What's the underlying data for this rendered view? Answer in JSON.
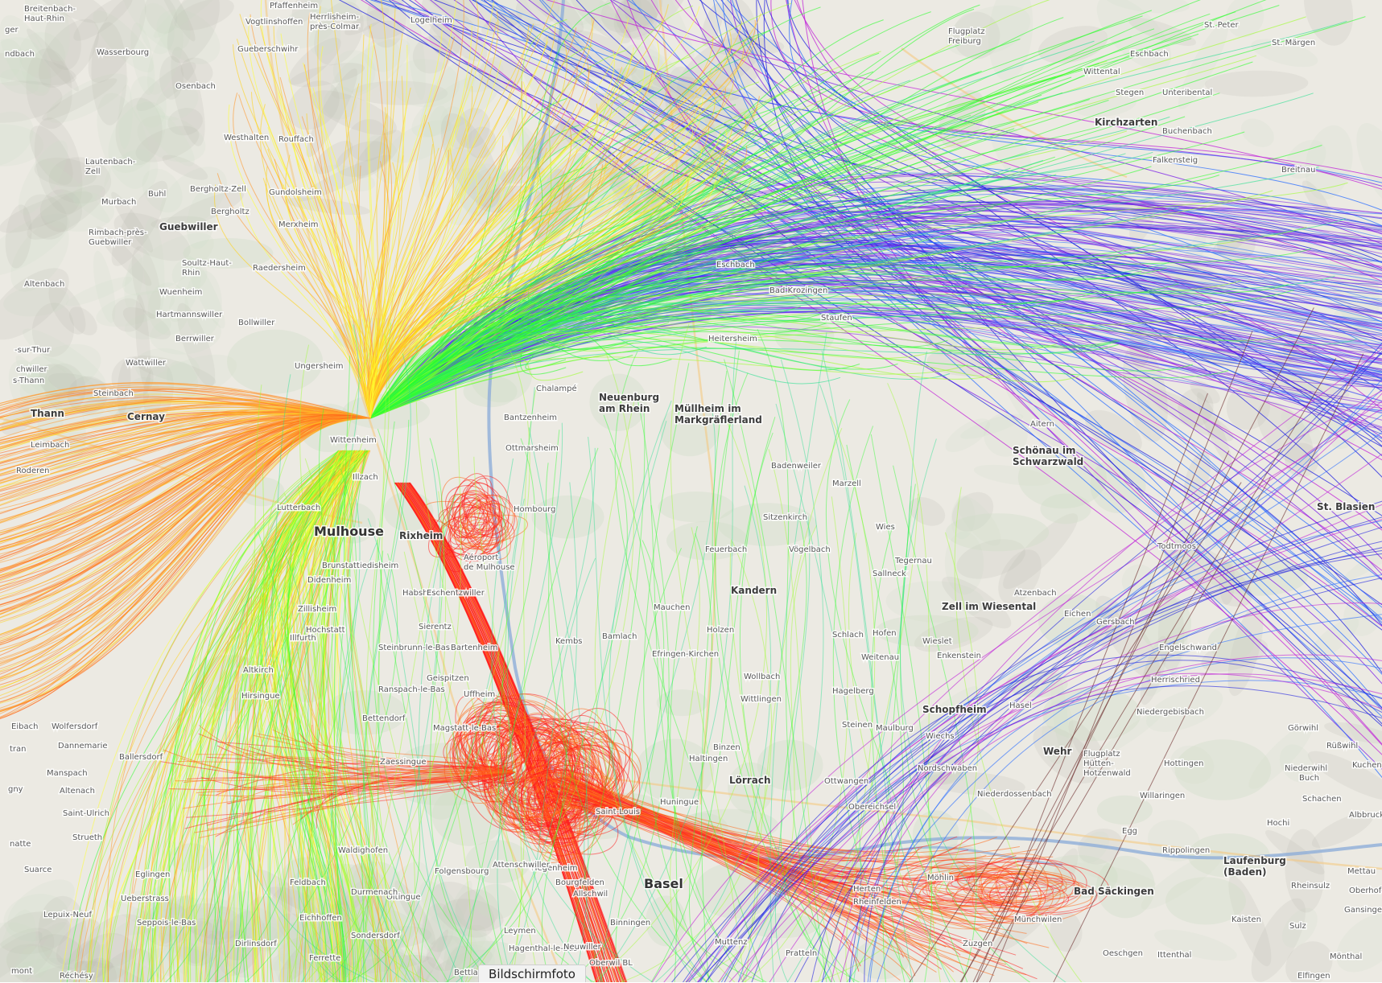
{
  "caption": "Bildschirmfoto",
  "colors": {
    "map_bg": "#eceae3",
    "forest": "#cfdcc6",
    "relief": "#b9b8ae",
    "river": "#8faed8",
    "road_major": "#f6c77a",
    "border": "#a07db8"
  },
  "trail_colors": [
    "#ff1e1e",
    "#ff6a1a",
    "#ff9a30",
    "#ffd21a",
    "#ffff33",
    "#9cff2a",
    "#2cff2c",
    "#28e090",
    "#2a6cff",
    "#2020e0",
    "#7a1ee8",
    "#c020d8",
    "#6b2a2a"
  ],
  "labels": [
    {
      "id": "breitenbach-haut-rhin",
      "text": "Breitenbach-\nHaut-Rhin",
      "kind": "village"
    },
    {
      "id": "pfaffenheim",
      "text": "Pfaffenheim",
      "kind": "village"
    },
    {
      "id": "herrlisheim-pres-colmar",
      "text": "Herrlisheim-\nprès-Colmar",
      "kind": "village"
    },
    {
      "id": "vogtlinshoffen",
      "text": "Vogtlinshoffen",
      "kind": "village"
    },
    {
      "id": "logelheim",
      "text": "Logelheim",
      "kind": "village"
    },
    {
      "id": "wasserbourg",
      "text": "Wasserbourg",
      "kind": "village"
    },
    {
      "id": "gueberschwihr",
      "text": "Gueberschwihr",
      "kind": "village"
    },
    {
      "id": "osenbach",
      "text": "Osenbach",
      "kind": "village"
    },
    {
      "id": "rouffach",
      "text": "Rouffach",
      "kind": "village"
    },
    {
      "id": "westhalten",
      "text": "Westhalten",
      "kind": "village"
    },
    {
      "id": "lautenbach-zell",
      "text": "Lautenbach-\nZell",
      "kind": "village"
    },
    {
      "id": "murbach",
      "text": "Murbach",
      "kind": "village"
    },
    {
      "id": "buhl",
      "text": "Buhl",
      "kind": "village"
    },
    {
      "id": "bergholtz-zell",
      "text": "Bergholtz-Zell",
      "kind": "village"
    },
    {
      "id": "bergholtz",
      "text": "Bergholtz",
      "kind": "village"
    },
    {
      "id": "guebwiller",
      "text": "Guebwiller",
      "kind": "town"
    },
    {
      "id": "rimbach-pres-guebwiller",
      "text": "Rimbach-près-\nGuebwiller",
      "kind": "village"
    },
    {
      "id": "soultz-haut-rhin",
      "text": "Soultz-Haut-\nRhin",
      "kind": "village"
    },
    {
      "id": "raedersheim",
      "text": "Raedersheim",
      "kind": "village"
    },
    {
      "id": "wuenheim",
      "text": "Wuenheim",
      "kind": "village"
    },
    {
      "id": "hartmannswiller",
      "text": "Hartmannswiller",
      "kind": "village"
    },
    {
      "id": "berrwiller",
      "text": "Berrwiller",
      "kind": "village"
    },
    {
      "id": "wattwiller",
      "text": "Wattwiller",
      "kind": "village"
    },
    {
      "id": "steinbach",
      "text": "Steinbach",
      "kind": "village"
    },
    {
      "id": "thann",
      "text": "Thann",
      "kind": "town"
    },
    {
      "id": "cernay",
      "text": "Cernay",
      "kind": "town"
    },
    {
      "id": "leimbach",
      "text": "Leimbach",
      "kind": "village"
    },
    {
      "id": "roderen",
      "text": "Roderen",
      "kind": "village"
    },
    {
      "id": "mulhouse",
      "text": "Mulhouse",
      "kind": "city"
    },
    {
      "id": "rixheim",
      "text": "Rixheim",
      "kind": "town"
    },
    {
      "id": "neuenburg-am-rhein",
      "text": "Neuenburg\nam Rhein",
      "kind": "town"
    },
    {
      "id": "mullheim-im-markgraflerland",
      "text": "Müllheim im\nMarkgräflerland",
      "kind": "town"
    },
    {
      "id": "flugplatz-freiburg",
      "text": "Flugplatz\nFreiburg",
      "kind": "village"
    },
    {
      "id": "st-peter",
      "text": "St. Peter",
      "kind": "village"
    },
    {
      "id": "st-margen",
      "text": "St. Märgen",
      "kind": "village"
    },
    {
      "id": "eschbach",
      "text": "Eschbach",
      "kind": "village"
    },
    {
      "id": "wittental",
      "text": "Wittental",
      "kind": "village"
    },
    {
      "id": "stegen",
      "text": "Stegen",
      "kind": "village"
    },
    {
      "id": "unteribental",
      "text": "Unteribental",
      "kind": "village"
    },
    {
      "id": "kirchzarten",
      "text": "Kirchzarten",
      "kind": "town"
    },
    {
      "id": "buchenbach",
      "text": "Buchenbach",
      "kind": "village"
    },
    {
      "id": "falkensteig",
      "text": "Falkensteig",
      "kind": "village"
    },
    {
      "id": "breitnau",
      "text": "Breitnau",
      "kind": "village"
    },
    {
      "id": "schonau-im-schwarzwald",
      "text": "Schönau im\nSchwarzwald",
      "kind": "town"
    },
    {
      "id": "aitern",
      "text": "Aitern",
      "kind": "village"
    },
    {
      "id": "st-blasien",
      "text": "St. Blasien",
      "kind": "town"
    },
    {
      "id": "todtmoos",
      "text": "Todtmoos",
      "kind": "village"
    },
    {
      "id": "kandern",
      "text": "Kandern",
      "kind": "town"
    },
    {
      "id": "feuerbach",
      "text": "Feuerbach",
      "kind": "village"
    },
    {
      "id": "sallneck",
      "text": "Sallneck",
      "kind": "village"
    },
    {
      "id": "zell-im-wiesental",
      "text": "Zell im Wiesental",
      "kind": "town"
    },
    {
      "id": "gersbach",
      "text": "Gersbach",
      "kind": "village"
    },
    {
      "id": "engelschwand",
      "text": "Engelschwand",
      "kind": "village"
    },
    {
      "id": "herrischried",
      "text": "Herrischried",
      "kind": "village"
    },
    {
      "id": "schopfheim",
      "text": "Schopfheim",
      "kind": "town"
    },
    {
      "id": "hasel",
      "text": "Hasel",
      "kind": "village"
    },
    {
      "id": "niedergebisbach",
      "text": "Niedergebisbach",
      "kind": "village"
    },
    {
      "id": "gorwihl",
      "text": "Görwihl",
      "kind": "village"
    },
    {
      "id": "wehr",
      "text": "Wehr",
      "kind": "town"
    },
    {
      "id": "flugplatz-hutten-hotzenwald",
      "text": "Flugplatz\nHütten-\nHotzenwald",
      "kind": "village"
    },
    {
      "id": "hottingen",
      "text": "Hottingen",
      "kind": "village"
    },
    {
      "id": "niederwihl",
      "text": "Niederwihl",
      "kind": "village"
    },
    {
      "id": "lorrach",
      "text": "Lörrach",
      "kind": "town"
    },
    {
      "id": "basel",
      "text": "Basel",
      "kind": "city"
    },
    {
      "id": "allschwil",
      "text": "Allschwil",
      "kind": "village"
    },
    {
      "id": "binningen",
      "text": "Binningen",
      "kind": "village"
    },
    {
      "id": "oberwil-bl",
      "text": "Oberwil BL",
      "kind": "village"
    },
    {
      "id": "muttenz",
      "text": "Muttenz",
      "kind": "village"
    },
    {
      "id": "pratteln",
      "text": "Pratteln",
      "kind": "village"
    },
    {
      "id": "mohlin",
      "text": "Möhlin",
      "kind": "village"
    },
    {
      "id": "bad-sackingen",
      "text": "Bad Säckingen",
      "kind": "town"
    },
    {
      "id": "laufenburg-baden",
      "text": "Laufenburg\n(Baden)",
      "kind": "town"
    },
    {
      "id": "rippolingen",
      "text": "Rippolingen",
      "kind": "village"
    },
    {
      "id": "willaringen",
      "text": "Willaringen",
      "kind": "village"
    },
    {
      "id": "wies",
      "text": "Wies",
      "kind": "village"
    },
    {
      "id": "weitenau",
      "text": "Weitenau",
      "kind": "village"
    },
    {
      "id": "enkenstein",
      "text": "Enkenstein",
      "kind": "village"
    },
    {
      "id": "hagelberg",
      "text": "Hagelberg",
      "kind": "village"
    },
    {
      "id": "wiechs",
      "text": "Wiechs",
      "kind": "village"
    },
    {
      "id": "nordschwaben",
      "text": "Nordschwaben",
      "kind": "village"
    },
    {
      "id": "niederdossenbach",
      "text": "Niederdossenbach",
      "kind": "village"
    },
    {
      "id": "obereichsel",
      "text": "Obereichsel",
      "kind": "village"
    },
    {
      "id": "ottwangen",
      "text": "Ottwangen",
      "kind": "village"
    },
    {
      "id": "herten",
      "text": "Herten",
      "kind": "village"
    },
    {
      "id": "rheinfelden",
      "text": "Rheinfelden",
      "kind": "village"
    },
    {
      "id": "zuzgen",
      "text": "Zuzgen",
      "kind": "village"
    },
    {
      "id": "munchwilen",
      "text": "Münchwilen",
      "kind": "village"
    },
    {
      "id": "oeschgen",
      "text": "Oeschgen",
      "kind": "village"
    },
    {
      "id": "ittenthal",
      "text": "Ittenthal",
      "kind": "village"
    },
    {
      "id": "kaisten",
      "text": "Kaisten",
      "kind": "village"
    },
    {
      "id": "sulz",
      "text": "Sulz",
      "kind": "village"
    },
    {
      "id": "monthal",
      "text": "Mönthal",
      "kind": "village"
    },
    {
      "id": "elfingen",
      "text": "Elfingen",
      "kind": "village"
    },
    {
      "id": "gansingen",
      "text": "Gansingen",
      "kind": "village"
    },
    {
      "id": "mettau",
      "text": "Mettau",
      "kind": "village"
    },
    {
      "id": "oberhofen",
      "text": "Oberhofen",
      "kind": "village"
    },
    {
      "id": "rheinsulz",
      "text": "Rheinsulz",
      "kind": "village"
    },
    {
      "id": "hochi",
      "text": "Hochi",
      "kind": "village"
    },
    {
      "id": "egg",
      "text": "Egg",
      "kind": "village"
    },
    {
      "id": "schachen",
      "text": "Schachen",
      "kind": "village"
    },
    {
      "id": "buch",
      "text": "Buch",
      "kind": "village"
    },
    {
      "id": "albbruck",
      "text": "Albbruck",
      "kind": "village"
    },
    {
      "id": "russwihl",
      "text": "Rüßwihl",
      "kind": "village"
    },
    {
      "id": "kuchen",
      "text": "Kuchen",
      "kind": "village"
    },
    {
      "id": "suarce",
      "text": "Suarce",
      "kind": "village"
    },
    {
      "id": "lepuix-neuf",
      "text": "Lepuix-Neuf",
      "kind": "village"
    },
    {
      "id": "rechesy",
      "text": "Réchésy",
      "kind": "village"
    },
    {
      "id": "saint-ulrich",
      "text": "Saint-Ulrich",
      "kind": "village"
    },
    {
      "id": "manspach",
      "text": "Manspach",
      "kind": "village"
    },
    {
      "id": "altenach",
      "text": "Altenach",
      "kind": "village"
    },
    {
      "id": "dannemarie",
      "text": "Dannemarie",
      "kind": "village"
    },
    {
      "id": "ballersdorf",
      "text": "Ballersdorf",
      "kind": "village"
    },
    {
      "id": "strueth",
      "text": "Strueth",
      "kind": "village"
    },
    {
      "id": "eglingen",
      "text": "Eglingen",
      "kind": "village"
    },
    {
      "id": "bettlach",
      "text": "Bettlach",
      "kind": "village"
    },
    {
      "id": "hagenthal-le-bas",
      "text": "Hagenthal-le-Bas",
      "kind": "village"
    },
    {
      "id": "neuwiller",
      "text": "Neuwiller",
      "kind": "village"
    },
    {
      "id": "burgfelden",
      "text": "Bourgfelden",
      "kind": "village"
    },
    {
      "id": "hegenheim",
      "text": "Hegenheim",
      "kind": "village"
    },
    {
      "id": "mulhouse-airport",
      "text": "Aéroport\nde Mulhouse",
      "kind": "village"
    },
    {
      "id": "sierentz",
      "text": "Sierentz",
      "kind": "village"
    },
    {
      "id": "kembs",
      "text": "Kembs",
      "kind": "village"
    },
    {
      "id": "bamlach",
      "text": "Bamlach",
      "kind": "village"
    },
    {
      "id": "efringen-kirchen",
      "text": "Efringen-Kirchen",
      "kind": "village"
    },
    {
      "id": "binzen",
      "text": "Binzen",
      "kind": "village"
    },
    {
      "id": "haltingen",
      "text": "Haltingen",
      "kind": "village"
    },
    {
      "id": "huningue",
      "text": "Huningue",
      "kind": "village"
    },
    {
      "id": "saint-louis",
      "text": "Saint-Louis",
      "kind": "village"
    },
    {
      "id": "mauchen",
      "text": "Mauchen",
      "kind": "village"
    },
    {
      "id": "holzen",
      "text": "Holzen",
      "kind": "village"
    },
    {
      "id": "wittlingen",
      "text": "Wittlingen",
      "kind": "village"
    },
    {
      "id": "wollbach",
      "text": "Wollbach",
      "kind": "village"
    },
    {
      "id": "schlach",
      "text": "Schlach",
      "kind": "village"
    },
    {
      "id": "hofen",
      "text": "Hofen",
      "kind": "village"
    },
    {
      "id": "wieslet",
      "text": "Wieslet",
      "kind": "village"
    },
    {
      "id": "atzenbach",
      "text": "Atzenbach",
      "kind": "village"
    },
    {
      "id": "eichen",
      "text": "Eichen",
      "kind": "village"
    },
    {
      "id": "maulburg",
      "text": "Maulburg",
      "kind": "village"
    },
    {
      "id": "steinen",
      "text": "Steinen",
      "kind": "village"
    },
    {
      "id": "tegernau",
      "text": "Tegernau",
      "kind": "village"
    },
    {
      "id": "vogelbach",
      "text": "Vögelbach",
      "kind": "village"
    },
    {
      "id": "marzell",
      "text": "Marzell",
      "kind": "village"
    },
    {
      "id": "sitzenkirch",
      "text": "Sitzenkirch",
      "kind": "village"
    },
    {
      "id": "badenweiler",
      "text": "Badenweiler",
      "kind": "village"
    },
    {
      "id": "staufen",
      "text": "Staufen",
      "kind": "village"
    },
    {
      "id": "bad-krozingen",
      "text": "Bad Krozingen",
      "kind": "village"
    },
    {
      "id": "heitersheim",
      "text": "Heitersheim",
      "kind": "village"
    },
    {
      "id": "eschbach-south",
      "text": "Eschbach",
      "kind": "village"
    },
    {
      "id": "ottmarsheim",
      "text": "Ottmarsheim",
      "kind": "village"
    },
    {
      "id": "bantzenheim",
      "text": "Bantzenheim",
      "kind": "village"
    },
    {
      "id": "chalampe",
      "text": "Chalampé",
      "kind": "village"
    },
    {
      "id": "hombourg",
      "text": "Hombourg",
      "kind": "village"
    },
    {
      "id": "illzach",
      "text": "Illzach",
      "kind": "village"
    },
    {
      "id": "wittenheim",
      "text": "Wittenheim",
      "kind": "village"
    },
    {
      "id": "ungersheim",
      "text": "Ungersheim",
      "kind": "village"
    },
    {
      "id": "bollwiller",
      "text": "Bollwiller",
      "kind": "village"
    },
    {
      "id": "merxheim",
      "text": "Merxheim",
      "kind": "village"
    },
    {
      "id": "gundolsheim",
      "text": "Gundolsheim",
      "kind": "village"
    },
    {
      "id": "lutterbach",
      "text": "Lutterbach",
      "kind": "village"
    },
    {
      "id": "riedisheim",
      "text": "Riedisheim",
      "kind": "village"
    },
    {
      "id": "habsheim",
      "text": "Habsheim",
      "kind": "village"
    },
    {
      "id": "didenheim",
      "text": "Didenheim",
      "kind": "village"
    },
    {
      "id": "illfurth",
      "text": "Illfurth",
      "kind": "village"
    },
    {
      "id": "altkirch",
      "text": "Altkirch",
      "kind": "village"
    },
    {
      "id": "hirsingue",
      "text": "Hirsingue",
      "kind": "village"
    },
    {
      "id": "zaessingue",
      "text": "Zaessingue",
      "kind": "village"
    },
    {
      "id": "magstatt",
      "text": "Magstatt-le-Bas",
      "kind": "village"
    },
    {
      "id": "ranspach",
      "text": "Ranspach-le-Bas",
      "kind": "village"
    },
    {
      "id": "geispitzen",
      "text": "Geispitzen",
      "kind": "village"
    },
    {
      "id": "oltingue",
      "text": "Oltingue",
      "kind": "village"
    },
    {
      "id": "feldbach",
      "text": "Feldbach",
      "kind": "village"
    },
    {
      "id": "eschentzwiller",
      "text": "Eschentzwiller",
      "kind": "village"
    },
    {
      "id": "zillisheim",
      "text": "Zillisheim",
      "kind": "village"
    },
    {
      "id": "brunstatt",
      "text": "Brunstatt",
      "kind": "village"
    },
    {
      "id": "hochstatt",
      "text": "Hochstatt",
      "kind": "village"
    },
    {
      "id": "bettendorf",
      "text": "Bettendorf",
      "kind": "village"
    },
    {
      "id": "steinbrunn",
      "text": "Steinbrunn-le-Bas",
      "kind": "village"
    },
    {
      "id": "bartenheim",
      "text": "Bartenheim",
      "kind": "village"
    },
    {
      "id": "uffheim",
      "text": "Uffheim",
      "kind": "village"
    },
    {
      "id": "attenschwiller",
      "text": "Attenschwiller",
      "kind": "village"
    },
    {
      "id": "folgensbourg",
      "text": "Folgensbourg",
      "kind": "village"
    },
    {
      "id": "durmenach",
      "text": "Durmenach",
      "kind": "village"
    },
    {
      "id": "leymen",
      "text": "Leymen",
      "kind": "village"
    },
    {
      "id": "sondersdorf",
      "text": "Sondersdorf",
      "kind": "village"
    },
    {
      "id": "eichhoffen",
      "text": "Eichhoffen",
      "kind": "village"
    },
    {
      "id": "ferrette",
      "text": "Ferrette",
      "kind": "village"
    },
    {
      "id": "ueberstrass",
      "text": "Ueberstrass",
      "kind": "village"
    },
    {
      "id": "seppois-le-bas",
      "text": "Seppois-le-Bas",
      "kind": "village"
    },
    {
      "id": "dirlinsdorf",
      "text": "Dirlinsdorf",
      "kind": "village"
    },
    {
      "id": "waldighofen",
      "text": "Waldighofen",
      "kind": "village"
    },
    {
      "id": "mont",
      "text": "mont",
      "kind": "village"
    },
    {
      "id": "gny",
      "text": "gny",
      "kind": "village"
    },
    {
      "id": "natte",
      "text": "natte",
      "kind": "village"
    },
    {
      "id": "eibach",
      "text": "Eibach",
      "kind": "village"
    },
    {
      "id": "tran",
      "text": "tran",
      "kind": "village"
    },
    {
      "id": "wolfersdorf",
      "text": "Wolfersdorf",
      "kind": "village"
    },
    {
      "id": "altenbach",
      "text": "Altenbach",
      "kind": "village"
    },
    {
      "id": "sur-thur",
      "text": "-sur-Thur",
      "kind": "village"
    },
    {
      "id": "schwiller",
      "text": "chwiller",
      "kind": "village"
    },
    {
      "id": "s-thann",
      "text": "s-Thann",
      "kind": "village"
    },
    {
      "id": "rechesy-left",
      "text": "ndbach",
      "kind": "village"
    },
    {
      "id": "guemar",
      "text": "ger",
      "kind": "village"
    }
  ]
}
